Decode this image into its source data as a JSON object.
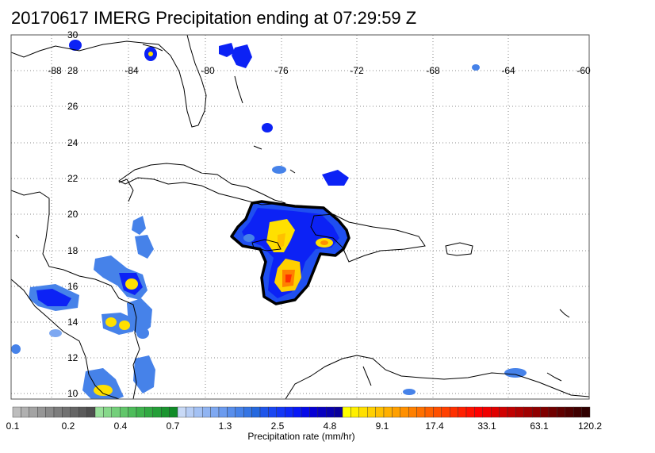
{
  "title": "20170617 IMERG Precipitation ending at 07:29:59 Z",
  "map": {
    "lon_range": [
      -90,
      -60
    ],
    "lat_range": [
      9.5,
      30
    ],
    "lon_ticks": [
      "-88",
      "-84",
      "-80",
      "-76",
      "-72",
      "-68",
      "-64",
      "-60"
    ],
    "lat_ticks": [
      "30",
      "28",
      "26",
      "24",
      "22",
      "20",
      "18",
      "16",
      "14",
      "12",
      "10"
    ],
    "grid": "dotted",
    "coastline_color": "#000000"
  },
  "colorbar": {
    "label": "Precipitation rate (mm/hr)",
    "tick_labels": [
      "0.1",
      "0.2",
      "0.4",
      "0.7",
      "1.3",
      "2.5",
      "4.8",
      "9.1",
      "17.4",
      "33.1",
      "63.1",
      "120.2"
    ],
    "colors": [
      "#bdbdbd",
      "#b0b0b0",
      "#a3a3a3",
      "#969696",
      "#8a8a8a",
      "#7d7d7d",
      "#717171",
      "#656565",
      "#5a5a5a",
      "#4e4e4e",
      "#98e09a",
      "#86d88a",
      "#73cf7a",
      "#61c66a",
      "#4ebd5b",
      "#3fb34d",
      "#31a942",
      "#249f38",
      "#1a952f",
      "#108b27",
      "#c8d9f6",
      "#b6cdf5",
      "#a3c1f4",
      "#90b4f2",
      "#7ea8f1",
      "#6b9bef",
      "#588eec",
      "#4682e9",
      "#3575e4",
      "#2468df",
      "#1f55ea",
      "#1946f2",
      "#1337f6",
      "#0d28f8",
      "#0718f7",
      "#0509e8",
      "#0600d4",
      "#0800c0",
      "#0900ae",
      "#0a009c",
      "#ffff00",
      "#fff000",
      "#ffe000",
      "#ffd000",
      "#ffc000",
      "#ffb000",
      "#ffa000",
      "#ff9000",
      "#ff8000",
      "#ff7000",
      "#ff6000",
      "#ff5000",
      "#ff4000",
      "#ff3000",
      "#ff2000",
      "#ff1000",
      "#ff0000",
      "#f00000",
      "#e00000",
      "#d00000",
      "#c00000",
      "#b00000",
      "#a00000",
      "#900000",
      "#800000",
      "#700000",
      "#600000",
      "#500000",
      "#400000",
      "#300000"
    ]
  }
}
